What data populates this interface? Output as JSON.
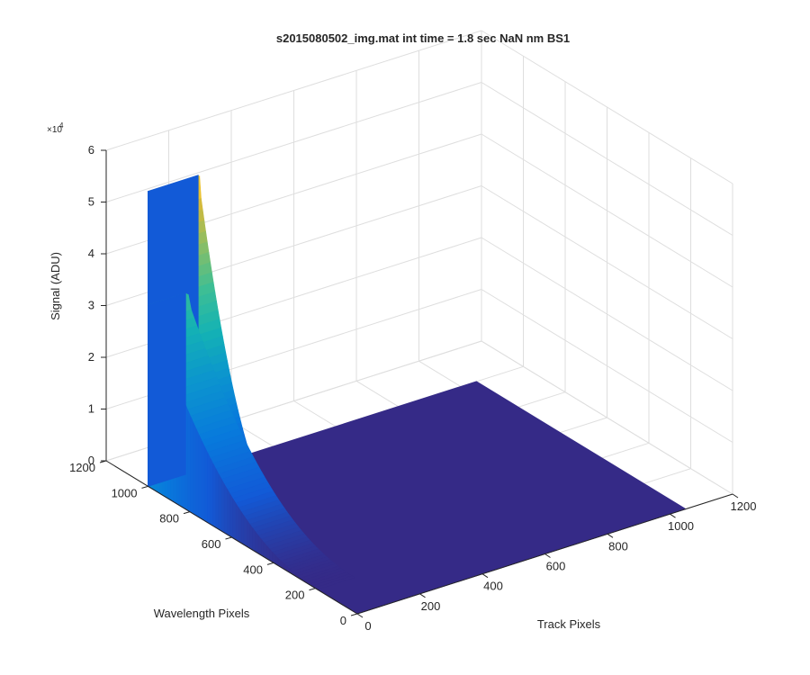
{
  "chart_data": {
    "type": "surface3d",
    "title": "s2015080502_img.mat int time = 1.8 sec  NaN nm BS1",
    "xlabel": "Track Pixels",
    "ylabel": "Wavelength Pixels",
    "zlabel": "Signal (ADU)",
    "z_exponent_label": "×10",
    "z_exponent_power": "4",
    "xlim": [
      0,
      1200
    ],
    "ylim": [
      0,
      1200
    ],
    "zlim": [
      0,
      60000
    ],
    "x_ticks": [
      "0",
      "200",
      "400",
      "600",
      "800",
      "1000",
      "1200"
    ],
    "y_ticks": [
      "0",
      "200",
      "400",
      "600",
      "800",
      "1000",
      "1200"
    ],
    "z_ticks": [
      "0",
      "1",
      "2",
      "3",
      "4",
      "5",
      "6"
    ],
    "colormap": "parula",
    "floor_color": "#352a87",
    "grid": true,
    "peaks": [
      {
        "name": "",
        "x_start": 0,
        "x_end": 120,
        "y_start": 190,
        "y_end": 1000,
        "peak_value": 35000
      },
      {
        "name": "",
        "x_start": 0,
        "x_end": 160,
        "y_start": 560,
        "y_end": 1000,
        "peak_value": 57000
      }
    ]
  }
}
